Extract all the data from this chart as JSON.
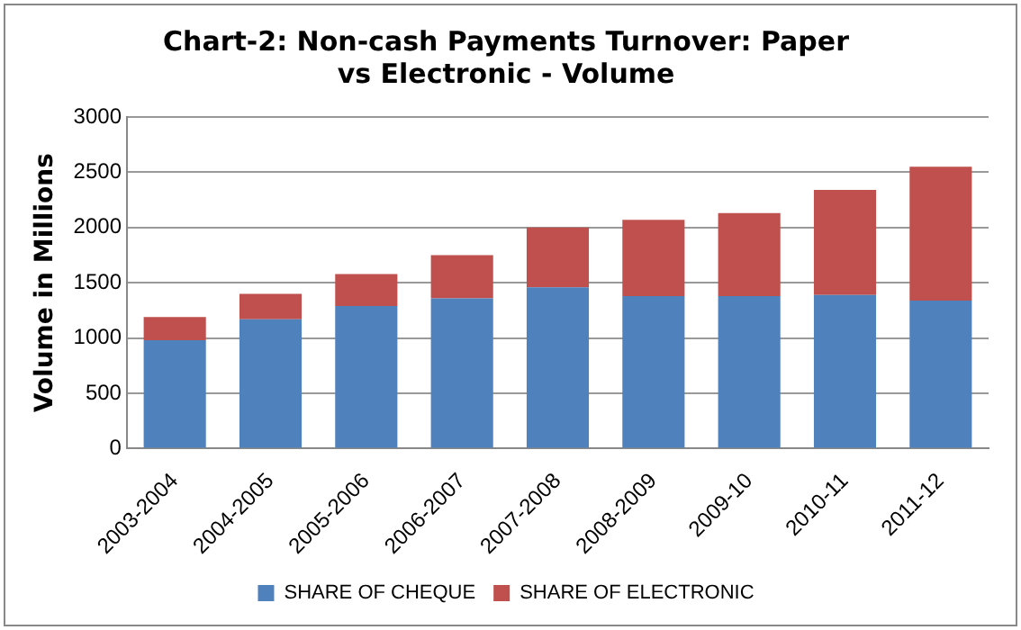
{
  "chart_data": {
    "type": "bar",
    "title": "Chart-2: Non-cash Payments Turnover: Paper vs Electronic - Volume",
    "ylabel": "Volume in Millions",
    "categories": [
      "2003-2004",
      "2004-2005",
      "2005-2006",
      "2006-2007",
      "2007-2008",
      "2008-2009",
      "2009-10",
      "2010-11",
      "2011-12"
    ],
    "series": [
      {
        "name": "SHARE OF CHEQUE",
        "color": "#4f81bd",
        "values": [
          980,
          1170,
          1290,
          1360,
          1460,
          1380,
          1380,
          1390,
          1340
        ]
      },
      {
        "name": "SHARE OF ELECTRONIC",
        "color": "#c0504d",
        "values": [
          210,
          230,
          290,
          390,
          540,
          690,
          750,
          950,
          1210
        ]
      }
    ],
    "stacked": true,
    "ylim": [
      0,
      3000
    ],
    "yticks": [
      0,
      500,
      1000,
      1500,
      2000,
      2500,
      3000
    ],
    "grid": "y",
    "legend": "bottom"
  }
}
